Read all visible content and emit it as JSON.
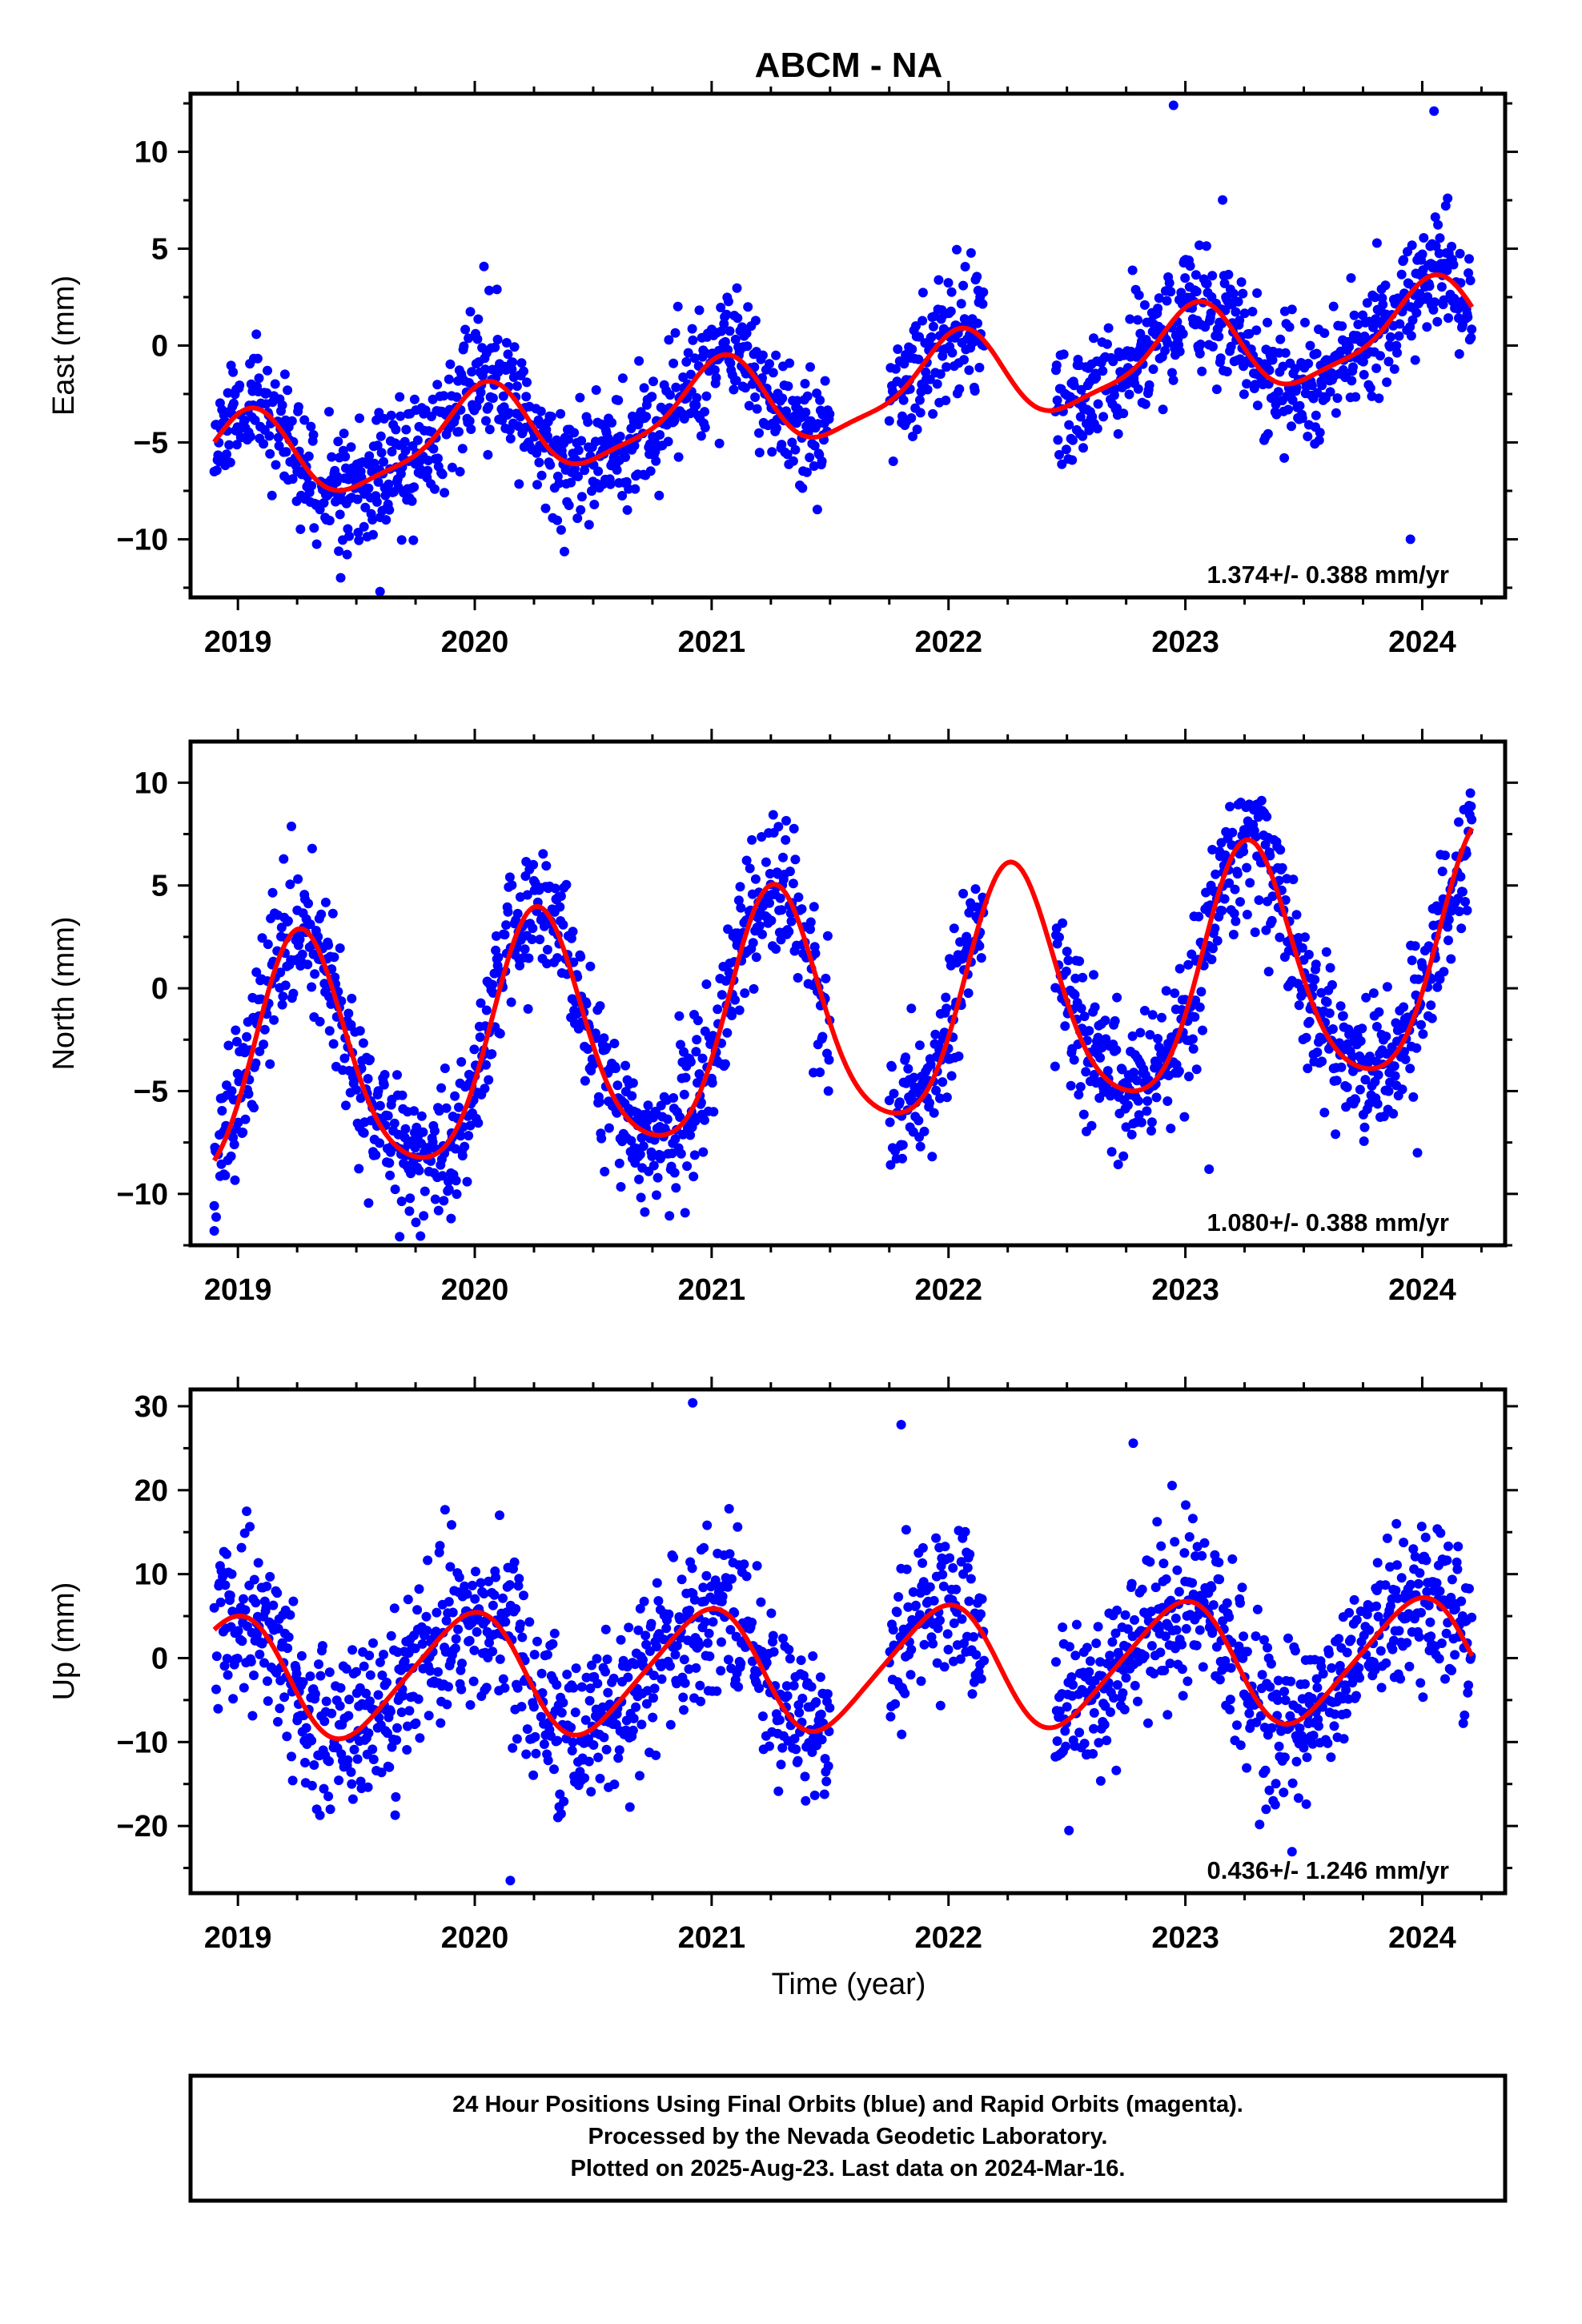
{
  "title": "ABCM - NA",
  "x_axis_label": "Time (year)",
  "footer": {
    "line1": "24 Hour Positions Using Final Orbits (blue) and Rapid Orbits (magenta).",
    "line2": "Processed by the Nevada Geodetic Laboratory.",
    "line3": "Plotted on 2025-Aug-23. Last data on 2024-Mar-16."
  },
  "colors": {
    "points": "#0000ff",
    "fit": "#ff0000",
    "frame": "#000000"
  },
  "chart_data": [
    {
      "type": "scatter",
      "ylabel": "East (mm)",
      "rate_label": "1.374+/- 0.388 mm/yr",
      "xlim": [
        2018.8,
        2024.35
      ],
      "ylim": [
        -13,
        13
      ],
      "xticks": [
        2019,
        2020,
        2021,
        2022,
        2023,
        2024
      ],
      "xtick_labels": [
        "2019",
        "2020",
        "2021",
        "2022",
        "2023",
        "2024"
      ],
      "yticks": [
        -10,
        -5,
        0,
        5,
        10
      ],
      "ytick_labels": [
        "−10",
        "−5",
        "0",
        "5",
        "10"
      ],
      "fit": {
        "offset": -2.6,
        "rate": 1.374,
        "sin1": 0.35,
        "cos1": 2.2,
        "sin2": 0.5,
        "cos2": 0.3,
        "t0": 2021.5
      },
      "scatter": {
        "sigma": 1.6,
        "seed": 11,
        "outliers": [
          [
            2019.6,
            -12.7
          ],
          [
            2023.95,
            -10.0
          ],
          [
            2022.95,
            12.4
          ],
          [
            2024.05,
            12.1
          ]
        ]
      },
      "series": [
        {
          "type": "scatter",
          "fit": "fit"
        }
      ],
      "gaps": [
        [
          2021.5,
          2021.75
        ],
        [
          2022.15,
          2022.45
        ]
      ],
      "data_range": [
        2018.9,
        2024.21
      ]
    },
    {
      "type": "scatter",
      "ylabel": "North (mm)",
      "rate_label": "1.080+/- 0.388 mm/yr",
      "xlim": [
        2018.8,
        2024.35
      ],
      "ylim": [
        -12.5,
        12
      ],
      "xticks": [
        2019,
        2020,
        2021,
        2022,
        2023,
        2024
      ],
      "xtick_labels": [
        "2019",
        "2020",
        "2021",
        "2022",
        "2023",
        "2024"
      ],
      "yticks": [
        -10,
        -5,
        0,
        5,
        10
      ],
      "ytick_labels": [
        "−10",
        "−5",
        "0",
        "5",
        "10"
      ],
      "fit": {
        "offset": -1.4,
        "rate": 1.08,
        "sin1": 5.8,
        "cos1": -0.6,
        "sin2": 0.0,
        "cos2": -0.9,
        "t0": 2021.5
      },
      "scatter": {
        "sigma": 1.7,
        "seed": 23,
        "outliers": [
          [
            2018.9,
            -11.8
          ],
          [
            2019.9,
            -11.2
          ],
          [
            2023.1,
            -8.8
          ],
          [
            2022.45,
            -3.8
          ],
          [
            2023.98,
            -8.0
          ]
        ]
      },
      "series": [
        {
          "type": "scatter",
          "fit": "fit"
        }
      ],
      "gaps": [
        [
          2021.5,
          2021.75
        ],
        [
          2022.15,
          2022.45
        ]
      ],
      "data_range": [
        2018.9,
        2024.21
      ]
    },
    {
      "type": "scatter",
      "ylabel": "Up (mm)",
      "rate_label": "0.436+/- 1.246 mm/yr",
      "xlim": [
        2018.8,
        2024.35
      ],
      "ylim": [
        -28,
        32
      ],
      "xticks": [
        2019,
        2020,
        2021,
        2022,
        2023,
        2024
      ],
      "xtick_labels": [
        "2019",
        "2020",
        "2021",
        "2022",
        "2023",
        "2024"
      ],
      "yticks": [
        -20,
        -10,
        0,
        10,
        20,
        30
      ],
      "ytick_labels": [
        "−20",
        "−10",
        "0",
        "10",
        "20",
        "30"
      ],
      "fit": {
        "offset": -1.3,
        "rate": 0.436,
        "sin1": -1.5,
        "cos1": 7.0,
        "sin2": 0.9,
        "cos2": 0.4,
        "t0": 2021.5
      },
      "scatter": {
        "sigma": 4.8,
        "seed": 37,
        "outliers": [
          [
            2020.15,
            -26.5
          ],
          [
            2020.92,
            30.4
          ],
          [
            2021.8,
            27.8
          ],
          [
            2022.78,
            25.6
          ]
        ]
      },
      "series": [
        {
          "type": "scatter",
          "fit": "fit"
        }
      ],
      "gaps": [
        [
          2021.5,
          2021.75
        ],
        [
          2022.15,
          2022.45
        ]
      ],
      "data_range": [
        2018.9,
        2024.21
      ]
    }
  ]
}
